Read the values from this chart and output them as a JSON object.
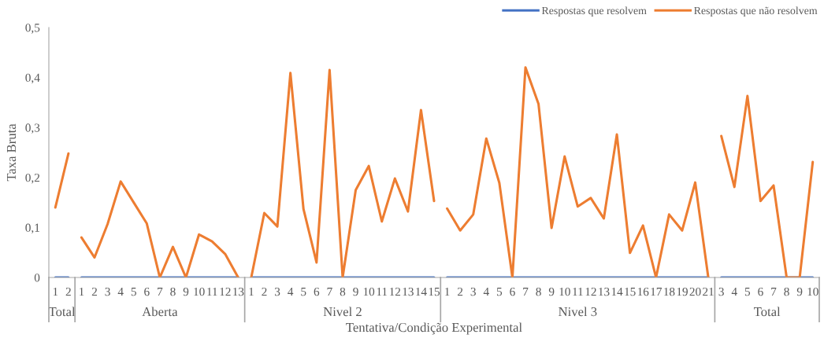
{
  "chart_data": [
    {
      "type": "line",
      "xlabel": "Total",
      "ylabel": "Taxa Bruta",
      "categories": [
        "1",
        "2"
      ],
      "ylim": [
        0,
        0.5
      ],
      "yticks": [
        {
          "value": 0,
          "label": "0"
        },
        {
          "value": 0.1,
          "label": "0,1"
        },
        {
          "value": 0.2,
          "label": "0,2"
        },
        {
          "value": 0.3,
          "label": "0,3"
        },
        {
          "value": 0.4,
          "label": "0,4"
        },
        {
          "value": 0.5,
          "label": "0,5"
        }
      ],
      "grid": false,
      "annotations": [
        "Tentativa/Condição Experimental"
      ],
      "series": [
        {
          "color": "#4472c4",
          "values": [
            0,
            0
          ]
        },
        {
          "color": "#ed7d31",
          "values": [
            0.14,
            0.248
          ]
        }
      ]
    },
    {
      "type": "line",
      "xlabel": "Aberta",
      "categories": [
        "1",
        "2",
        "3",
        "4",
        "5",
        "6",
        "7",
        "8",
        "9",
        "10",
        "11",
        "12",
        "13"
      ],
      "ylim": [
        0,
        0.5
      ],
      "tick_labels": "x",
      "grid": false,
      "series": [
        {
          "color": "#4472c4",
          "values": [
            0,
            0,
            0,
            0,
            0,
            0,
            0,
            0,
            0,
            0,
            0,
            0,
            0
          ]
        },
        {
          "color": "#ed7d31",
          "values": [
            0.08,
            0.04,
            0.107,
            0.192,
            0.15,
            0.108,
            0,
            0.061,
            0,
            0.086,
            0.072,
            0.047,
            0
          ]
        }
      ]
    },
    {
      "type": "line",
      "xlabel": "Nivel 2",
      "categories": [
        "1",
        "2",
        "3",
        "4",
        "5",
        "6",
        "7",
        "8",
        "9",
        "10",
        "11",
        "12",
        "13",
        "14",
        "15"
      ],
      "ylim": [
        0,
        0.5
      ],
      "tick_labels": "x",
      "grid": false,
      "series": [
        {
          "color": "#4472c4",
          "values": [
            0,
            0,
            0,
            0,
            0,
            0,
            0,
            0,
            0,
            0,
            0,
            0,
            0,
            0,
            0
          ]
        },
        {
          "color": "#ed7d31",
          "values": [
            0,
            0.129,
            0.102,
            0.409,
            0.137,
            0.03,
            0.415,
            0,
            0.175,
            0.223,
            0.112,
            0.198,
            0.132,
            0.335,
            0.153
          ]
        }
      ]
    },
    {
      "type": "line",
      "xlabel": "Nivel 3",
      "categories": [
        "1",
        "2",
        "3",
        "4",
        "5",
        "6",
        "7",
        "8",
        "9",
        "10",
        "11",
        "12",
        "13",
        "14",
        "15",
        "16",
        "17",
        "18",
        "19",
        "20",
        "21"
      ],
      "ylim": [
        0,
        0.5
      ],
      "tick_labels": "x",
      "grid": false,
      "legend": "top right",
      "series": [
        {
          "name": "Respostas que resolvem",
          "color": "#4472c4",
          "values": [
            0,
            0,
            0,
            0,
            0,
            0,
            0,
            0,
            0,
            0,
            0,
            0,
            0,
            0,
            0,
            0,
            0,
            0,
            0,
            0,
            0
          ]
        },
        {
          "name": "Respostas que não resolvem",
          "color": "#ed7d31",
          "values": [
            0.138,
            0.094,
            0.126,
            0.278,
            0.189,
            0,
            0.42,
            0.347,
            0.099,
            0.242,
            0.142,
            0.159,
            0.118,
            0.286,
            0.049,
            0.104,
            0,
            0.126,
            0.094,
            0.19,
            0
          ]
        }
      ]
    },
    {
      "type": "line",
      "xlabel": "Total",
      "categories": [
        "3",
        "4",
        "5",
        "6",
        "7",
        "8",
        "9",
        "10"
      ],
      "ylim": [
        0,
        0.5
      ],
      "tick_labels": "x",
      "grid": false,
      "series": [
        {
          "color": "#4472c4",
          "values": [
            0,
            0,
            0,
            0,
            0,
            0,
            0,
            0
          ]
        },
        {
          "color": "#ed7d31",
          "values": [
            0.283,
            0.181,
            0.363,
            0.153,
            0.184,
            0,
            0,
            0.231
          ]
        }
      ]
    }
  ]
}
